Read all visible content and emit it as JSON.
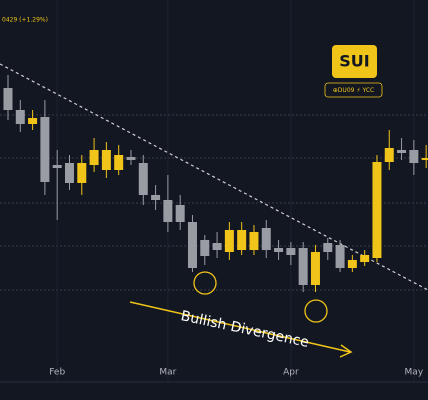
{
  "chart_data": {
    "type": "candlestick",
    "header": "0429 (+1.29%)",
    "logo": "SUI",
    "credit": "⊕DU09 ⚡ YCC",
    "annotation": "Bullish Divergence",
    "up_color": "#f0c419",
    "down_color": "#9a9ca3",
    "categories": [
      null,
      null,
      null,
      null,
      null,
      null,
      null,
      null,
      null,
      null,
      null,
      null,
      null,
      null,
      null,
      null,
      null,
      null,
      null,
      null,
      null,
      null,
      null,
      null,
      null,
      null,
      null,
      null,
      null,
      null,
      null,
      null,
      null,
      null,
      null
    ],
    "open": [
      312,
      290,
      276,
      283,
      235,
      237,
      217,
      235,
      230,
      230,
      243,
      237,
      205,
      200,
      195,
      178,
      160,
      157,
      148,
      150,
      150,
      172,
      152,
      152,
      152,
      115,
      157,
      155,
      132,
      138,
      142,
      238,
      250,
      250,
      240
    ],
    "high": [
      325,
      300,
      290,
      300,
      250,
      245,
      245,
      262,
      258,
      255,
      250,
      245,
      215,
      225,
      205,
      185,
      165,
      168,
      178,
      178,
      175,
      180,
      160,
      158,
      158,
      155,
      162,
      160,
      145,
      150,
      245,
      270,
      262,
      260,
      255
    ],
    "low": [
      280,
      268,
      270,
      205,
      180,
      210,
      205,
      228,
      222,
      225,
      235,
      195,
      190,
      168,
      170,
      128,
      135,
      142,
      140,
      145,
      145,
      142,
      140,
      135,
      108,
      108,
      140,
      128,
      128,
      134,
      138,
      230,
      240,
      225,
      232
    ],
    "close": [
      290,
      276,
      282,
      218,
      232,
      217,
      237,
      250,
      250,
      245,
      240,
      205,
      200,
      178,
      178,
      132,
      144,
      150,
      170,
      170,
      168,
      150,
      148,
      145,
      115,
      148,
      148,
      132,
      140,
      145,
      238,
      252,
      247,
      237,
      242
    ],
    "xlim": [
      -0.65,
      34.15
    ],
    "ylim": [
      0,
      400
    ],
    "xticks": [
      {
        "value": 4,
        "label": "Feb"
      },
      {
        "value": 13,
        "label": "Mar"
      },
      {
        "value": 23,
        "label": "Apr"
      },
      {
        "value": 33,
        "label": "May"
      }
    ]
  }
}
